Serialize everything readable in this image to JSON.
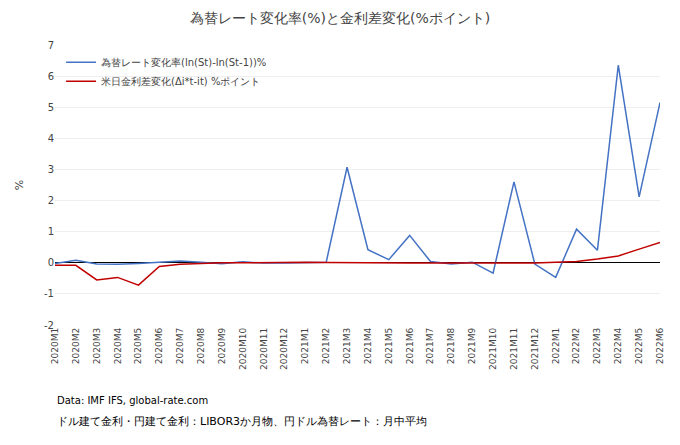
{
  "chart_data": {
    "type": "line",
    "title": "為替レート変化率(%)と金利差変化(%ポイント)",
    "ylabel": "%",
    "categories": [
      "2020M1",
      "2020M2",
      "2020M3",
      "2020M4",
      "2020M5",
      "2020M6",
      "2020M7",
      "2020M8",
      "2020M9",
      "2020M10",
      "2020M11",
      "2020M12",
      "2021M1",
      "2021M2",
      "2021M3",
      "2021M4",
      "2021M5",
      "2021M6",
      "2021M7",
      "2021M8",
      "2021M9",
      "2021M10",
      "2021M11",
      "2021M12",
      "2022M1",
      "2022M2",
      "2022M3",
      "2022M4",
      "2022M5",
      "2022M6"
    ],
    "series": [
      {
        "name": "為替レート変化率(ln(St)-ln(St-1))%",
        "color": "#4472C4",
        "values": [
          -0.02,
          0.08,
          -0.04,
          -0.05,
          -0.02,
          0.02,
          0.06,
          0.02,
          -0.03,
          0.03,
          -0.01,
          -0.01,
          0.01,
          0.02,
          3.07,
          0.42,
          0.1,
          0.88,
          0.04,
          -0.04,
          0.02,
          -0.33,
          2.6,
          -0.04,
          -0.47,
          1.08,
          0.4,
          6.35,
          2.12,
          5.15
        ]
      },
      {
        "name": "米日金利差変化(Δi*t-it) %ポイント",
        "color": "#C00000",
        "values": [
          -0.08,
          -0.08,
          -0.55,
          -0.47,
          -0.72,
          -0.12,
          -0.05,
          -0.02,
          0.0,
          0.0,
          0.01,
          0.03,
          0.02,
          0.01,
          0.0,
          -0.01,
          -0.01,
          -0.01,
          -0.01,
          -0.01,
          0.0,
          -0.01,
          0.0,
          -0.01,
          0.02,
          0.04,
          0.12,
          0.22,
          0.44,
          0.65
        ]
      }
    ],
    "ylim": [
      -2,
      7
    ],
    "yticks": [
      -2,
      -1,
      0,
      1,
      2,
      3,
      4,
      5,
      6,
      7
    ],
    "grid": true,
    "legend": "upper left",
    "annotations": [
      "Data: IMF IFS, global-rate.com",
      "ドル建て金利・円建て金利：LIBOR3か月物、円ドル為替レート：月中平均"
    ]
  }
}
